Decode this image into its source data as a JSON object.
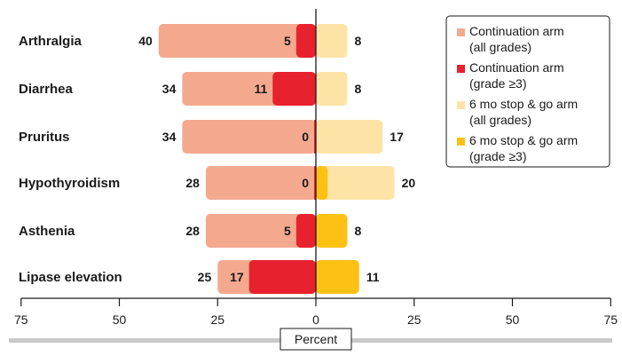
{
  "chart_data": {
    "type": "bar",
    "subtype": "diverging-horizontal-overlaid",
    "categories": [
      "Arthralgia",
      "Diarrhea",
      "Pruritus",
      "Hypothyroidism",
      "Asthenia",
      "Lipase elevation"
    ],
    "series": [
      {
        "name": "Continuation arm (all grades)",
        "side": "left",
        "color": "#f4a98f",
        "values": [
          40,
          34,
          34,
          28,
          28,
          25
        ]
      },
      {
        "name": "Continuation arm (grade ≥3)",
        "side": "left",
        "color": "#e8212e",
        "values": [
          5,
          11,
          0,
          0,
          5,
          17
        ]
      },
      {
        "name": "6 mo stop & go arm (all grades)",
        "side": "right",
        "color": "#fde3a6",
        "values": [
          8,
          8,
          17,
          20,
          8,
          11
        ]
      },
      {
        "name": "6 mo stop & go arm (grade ≥3)",
        "side": "right",
        "color": "#fdc114",
        "values": [
          0,
          0,
          0,
          3,
          8,
          11
        ]
      }
    ],
    "value_labels": {
      "left_all": [
        "40",
        "34",
        "34",
        "28",
        "28",
        "25"
      ],
      "left_grade3": [
        "5",
        "11",
        "0",
        "0",
        "5",
        "17"
      ],
      "right_all": [
        "8",
        "8",
        "17",
        "20",
        "8",
        "11"
      ]
    },
    "xlabel": "Percent",
    "xlim": [
      -75,
      75
    ],
    "ticks": [
      -75,
      -50,
      -25,
      0,
      25,
      50,
      75
    ],
    "tick_labels": [
      "75",
      "50",
      "25",
      "0",
      "25",
      "50",
      "75"
    ],
    "legend": {
      "placement": "top-right",
      "entries": [
        {
          "lines": [
            "Continuation arm",
            "(all grades)"
          ],
          "color": "#f4a98f"
        },
        {
          "lines": [
            "Continuation arm",
            "(grade ≥3)"
          ],
          "color": "#e8212e"
        },
        {
          "lines": [
            "6 mo stop & go arm",
            "(all grades)"
          ],
          "color": "#fde3a6"
        },
        {
          "lines": [
            "6 mo stop & go arm",
            "(grade ≥3)"
          ],
          "color": "#fdc114"
        }
      ]
    },
    "grid": false
  }
}
